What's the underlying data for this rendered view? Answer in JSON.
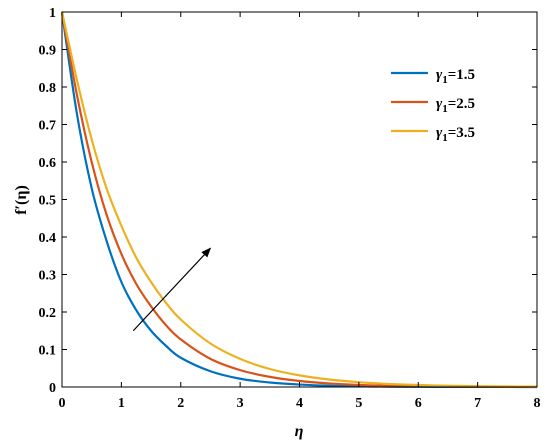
{
  "chart_data": {
    "type": "line",
    "xlabel": "η",
    "ylabel": "f′(η)",
    "xlim": [
      0,
      8
    ],
    "ylim": [
      0,
      1
    ],
    "xticks": [
      "0",
      "1",
      "2",
      "3",
      "4",
      "5",
      "6",
      "7",
      "8"
    ],
    "yticks": [
      "0",
      "0.1",
      "0.2",
      "0.3",
      "0.4",
      "0.5",
      "0.6",
      "0.7",
      "0.8",
      "0.9",
      "1"
    ],
    "grid": false,
    "legend_position": "top-right",
    "x": [
      0,
      0.25,
      0.5,
      0.75,
      1,
      1.25,
      1.5,
      1.75,
      2,
      2.5,
      3,
      3.5,
      4,
      4.5,
      5,
      5.5,
      6,
      6.5,
      7,
      7.5,
      8
    ],
    "series": [
      {
        "name": "γ1=1.5",
        "legend_symbol": "γ",
        "legend_sub": "1",
        "legend_value": "=1.5",
        "color": "#0072BD",
        "values": [
          1.0,
          0.73,
          0.53,
          0.39,
          0.28,
          0.205,
          0.15,
          0.11,
          0.078,
          0.042,
          0.022,
          0.012,
          0.0065,
          0.0035,
          0.0019,
          0.001,
          0.0005,
          0.0003,
          0.0002,
          0.0001,
          0.0
        ]
      },
      {
        "name": "γ1=2.5",
        "legend_symbol": "γ",
        "legend_sub": "1",
        "legend_value": "=2.5",
        "color": "#D95319",
        "values": [
          1.0,
          0.78,
          0.6,
          0.46,
          0.355,
          0.275,
          0.215,
          0.165,
          0.127,
          0.075,
          0.045,
          0.027,
          0.016,
          0.0095,
          0.0055,
          0.0033,
          0.002,
          0.0012,
          0.0007,
          0.0004,
          0.0002
        ]
      },
      {
        "name": "γ1=3.5",
        "legend_symbol": "γ",
        "legend_sub": "1",
        "legend_value": "=3.5",
        "color": "#EDB120",
        "values": [
          1.0,
          0.82,
          0.66,
          0.53,
          0.43,
          0.345,
          0.28,
          0.225,
          0.18,
          0.116,
          0.075,
          0.048,
          0.031,
          0.02,
          0.0128,
          0.0082,
          0.0053,
          0.0034,
          0.0022,
          0.0014,
          0.0009
        ]
      }
    ],
    "annotation_arrow": {
      "from": [
        1.2,
        0.15
      ],
      "to": [
        2.5,
        0.37
      ]
    }
  }
}
